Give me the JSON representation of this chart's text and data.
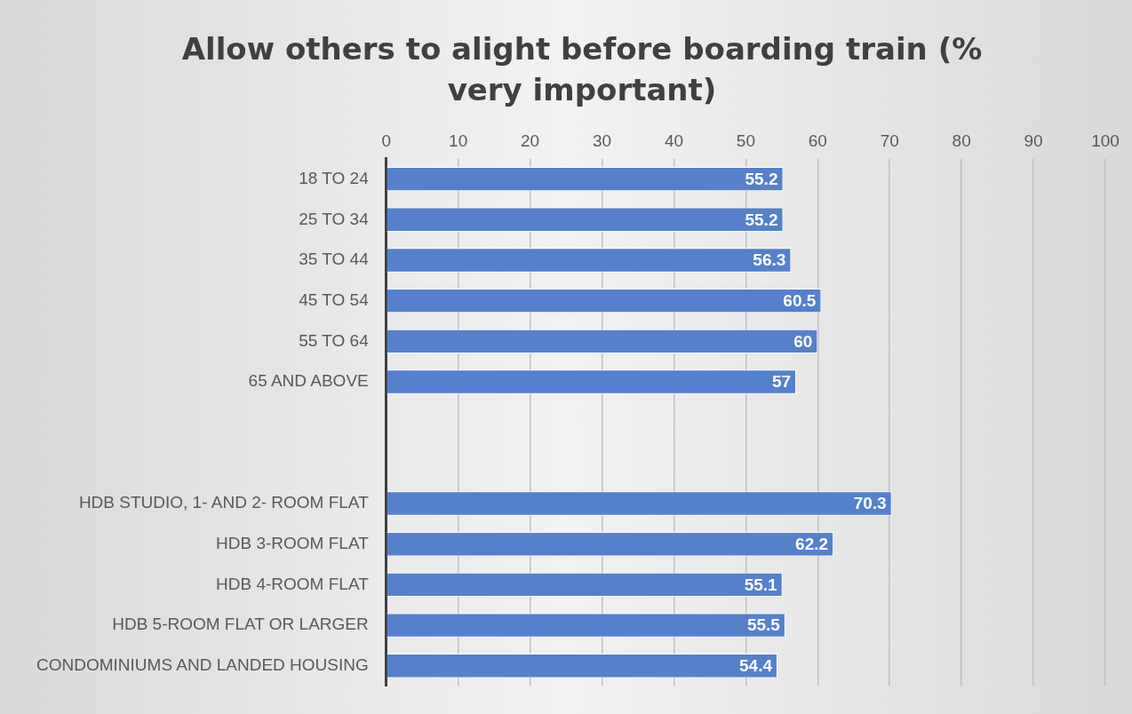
{
  "chart_data": {
    "type": "bar",
    "orientation": "horizontal",
    "title": "Allow others to alight before boarding train (% very important)",
    "categories": [
      "18 TO 24",
      "25 TO 34",
      "35 TO 44",
      "45 TO 54",
      "55 TO 64",
      "65 AND ABOVE",
      null,
      null,
      "HDB STUDIO, 1- AND 2- ROOM FLAT",
      "HDB 3-ROOM FLAT",
      "HDB 4-ROOM FLAT",
      "HDB 5-ROOM FLAT OR LARGER",
      "CONDOMINIUMS AND LANDED HOUSING"
    ],
    "values": [
      55.2,
      55.2,
      56.3,
      60.5,
      60,
      57,
      null,
      null,
      70.3,
      62.2,
      55.1,
      55.5,
      54.4
    ],
    "color": "#5581cc",
    "xlim": [
      0,
      100
    ],
    "xticks": [
      0,
      10,
      20,
      30,
      40,
      50,
      60,
      70,
      80,
      90,
      100
    ],
    "grid": "x",
    "data_labels": true,
    "legend": false
  }
}
